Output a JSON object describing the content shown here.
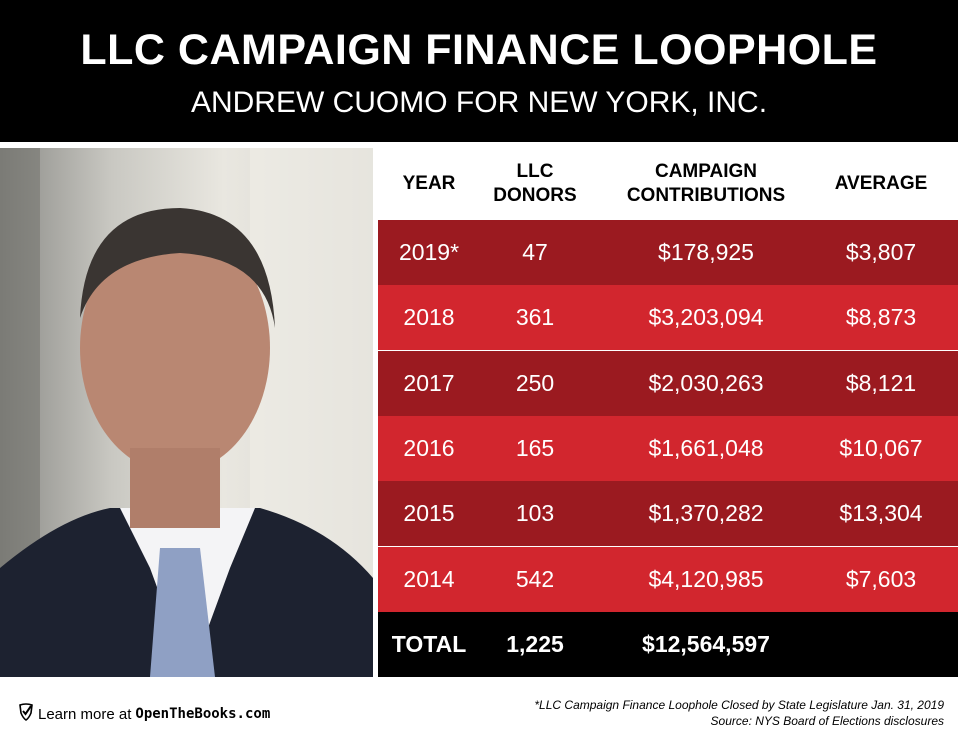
{
  "header": {
    "title": "LLC CAMPAIGN FINANCE LOOPHOLE",
    "subtitle": "ANDREW CUOMO FOR NEW YORK, INC."
  },
  "chart_data": {
    "type": "table",
    "columns": [
      "YEAR",
      "LLC\nDONORS",
      "CAMPAIGN\nCONTRIBUTIONS",
      "AVERAGE"
    ],
    "rows": [
      [
        "2019*",
        "47",
        "$178,925",
        "$3,807"
      ],
      [
        "2018",
        "361",
        "$3,203,094",
        "$8,873"
      ],
      [
        "2017",
        "250",
        "$2,030,263",
        "$8,121"
      ],
      [
        "2016",
        "165",
        "$1,661,048",
        "$10,067"
      ],
      [
        "2015",
        "103",
        "$1,370,282",
        "$13,304"
      ],
      [
        "2014",
        "542",
        "$4,120,985",
        "$7,603"
      ]
    ],
    "total": [
      "TOTAL",
      "1,225",
      "$12,564,597",
      ""
    ],
    "colors": {
      "row_dark": "#9b1a20",
      "row_light": "#d2262e",
      "total": "#000000"
    }
  },
  "footer": {
    "learn_prefix": "Learn more at ",
    "learn_site": "OpenTheBooks.com",
    "note": "*LLC Campaign Finance Loophole Closed by State Legislature Jan. 31, 2019",
    "source": "Source: NYS Board of Elections disclosures"
  }
}
